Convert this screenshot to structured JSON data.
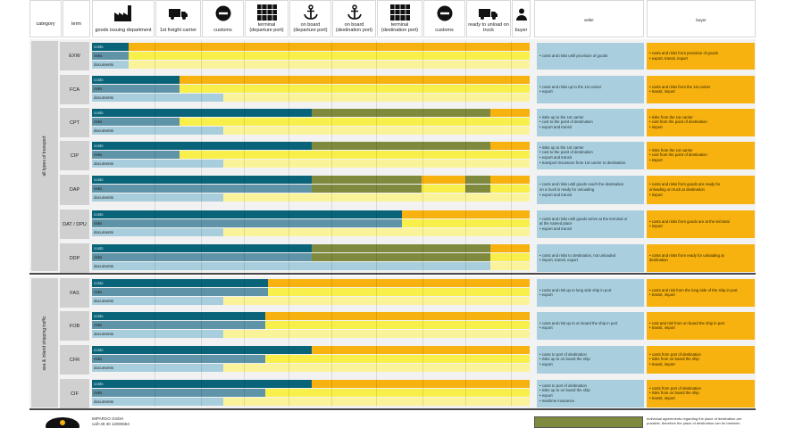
{
  "header": {
    "category": "category",
    "term": "term",
    "stages": [
      "goods issuing department",
      "1st freight carrier",
      "customs",
      "terminal\n(departure port)",
      "on board\n(departure port)",
      "on board\n(destination port)",
      "terminal\n(destination port)",
      "customs",
      "ready to unload on truck",
      "buyer"
    ],
    "seller": "seller",
    "buyer": "buyer"
  },
  "categories": {
    "all_transport": "all types of transport",
    "sea": "sea & inland shipping traffic"
  },
  "bar_labels": {
    "costs": "costs",
    "risks": "risks",
    "documents": "documents"
  },
  "terms": [
    {
      "code": "EXW",
      "seller": [
        "• costs and risks until provision of goods"
      ],
      "buyer": [
        "• costs and risks from provision of goods",
        "• export, transit, import"
      ]
    },
    {
      "code": "FCA",
      "seller": [
        "• costs and risks up to the 1st carrier",
        "• export"
      ],
      "buyer": [
        "• costs and risks from the 1st carrier",
        "• transit, import"
      ]
    },
    {
      "code": "CPT",
      "seller": [
        "• risks up to the 1st carrier",
        "• cost to the point of destination",
        "• export and transit"
      ],
      "buyer": [
        "• risks from the 1st carrier",
        "• cost from the point of destination",
        "• import"
      ]
    },
    {
      "code": "CIP",
      "seller": [
        "• risks up to the 1st carrier",
        "• cost to the point of destination",
        "• export and transit",
        "• transport insurance from 1st carrier to destination"
      ],
      "buyer": [
        "• risks from the 1st carrier",
        "• cost from the point of destination",
        "• import"
      ]
    },
    {
      "code": "DAP",
      "seller": [
        "• costs and risks until goods reach the destination",
        "  on a truck is ready for unloading",
        "• export and transit"
      ],
      "buyer": [
        "• costs and risks from goods are ready for",
        "  unloading on truck at destination",
        "• import"
      ]
    },
    {
      "code": "DAT / DPU",
      "seller": [
        "• costs and risks until goods arrive at the terminal or",
        "  at the named place",
        "• export and transit"
      ],
      "buyer": [
        "• costs and risks from goods are at the terminal",
        "• import"
      ]
    },
    {
      "code": "DDP",
      "seller": [
        "• costs and risks to destination, not unloaded",
        "• import, transit, export"
      ],
      "buyer": [
        "• costs and risks from ready for unloading at",
        "  destination"
      ]
    },
    {
      "code": "FAS",
      "seller": [
        "• costs and risk up to long side ship in port",
        "• export"
      ],
      "buyer": [
        "• costs and risk from the long side of the ship in port",
        "• transit, import"
      ]
    },
    {
      "code": "FOB",
      "seller": [
        "• costs and risk up to on board the ship in port",
        "• export"
      ],
      "buyer": [
        "• cost and risk from on board the ship in port",
        "• transit, import"
      ]
    },
    {
      "code": "CFR",
      "seller": [
        "• costs to port of destination",
        "• risks up to on board the ship",
        "• export"
      ],
      "buyer": [
        "• costs from port of destination",
        "• risks from on board the ship",
        "• transit, import"
      ]
    },
    {
      "code": "CIF",
      "seller": [
        "• costs to port of destination",
        "• risks up to on board the ship",
        "• export",
        "• maritime insurance"
      ],
      "buyer": [
        "• costs from port of destination",
        "• risks from on board the ship",
        "• transit, import"
      ]
    }
  ],
  "footer": {
    "company": [
      "IMPARGO GmbH",
      "call+49 30 12080684"
    ],
    "note": [
      "Individual agreements regarding the place of destination are",
      "possible, therefore the place of destination can be between"
    ]
  },
  "colors": {
    "seller_costs": "#0a6479",
    "seller_risks": "#5f93a8",
    "seller_documents": "#a8cedd",
    "buyer_costs": "#f7b20f",
    "buyer_risks": "#f9ef4a",
    "buyer_documents": "#fbf39a",
    "flexible": "#7f8a3f"
  }
}
